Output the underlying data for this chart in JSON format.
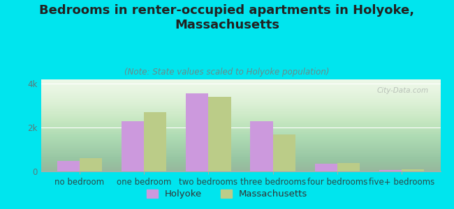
{
  "title": "Bedrooms in renter-occupied apartments in Holyoke,\nMassachusetts",
  "subtitle": "(Note: State values scaled to Holyoke population)",
  "categories": [
    "no bedroom",
    "one bedroom",
    "two bedrooms",
    "three bedrooms",
    "four bedrooms",
    "five+ bedrooms"
  ],
  "holyoke_values": [
    480,
    2300,
    3550,
    2300,
    340,
    55
  ],
  "massachusetts_values": [
    600,
    2700,
    3400,
    1700,
    390,
    110
  ],
  "holyoke_color": "#cc99dd",
  "massachusetts_color": "#bbcc88",
  "background_color": "#00e5ee",
  "plot_bg_top": "#d8f0d0",
  "plot_bg_bottom": "#f8fff8",
  "title_color": "#222222",
  "subtitle_color": "#6a8a8a",
  "tick_color": "#5a7a7a",
  "label_color": "#2a4a4a",
  "legend_label_color": "#333333",
  "ylim": [
    0,
    4200
  ],
  "ytick_vals": [
    0,
    2000,
    4000
  ],
  "ytick_labels": [
    "0",
    "2k",
    "4k"
  ],
  "bar_width": 0.35,
  "title_fontsize": 13,
  "subtitle_fontsize": 8.5,
  "tick_fontsize": 8.5,
  "label_fontsize": 8.5,
  "legend_fontsize": 9.5,
  "watermark": "City-Data.com"
}
